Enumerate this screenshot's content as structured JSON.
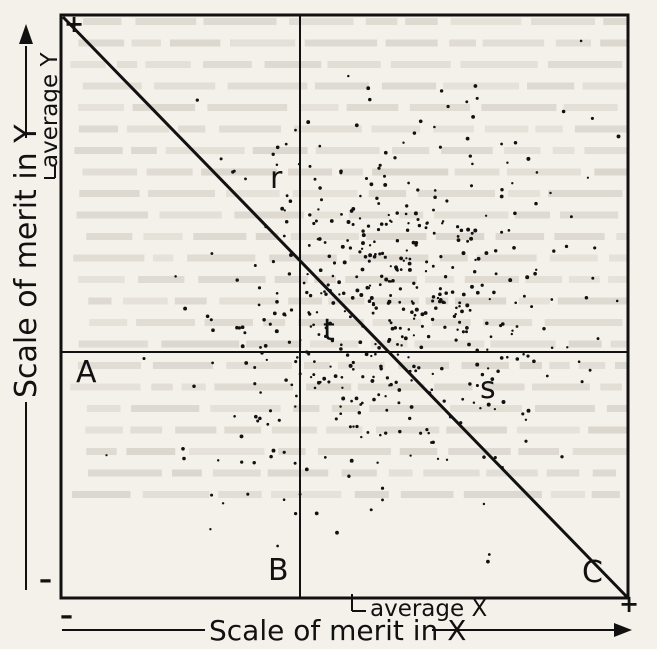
{
  "diagram": {
    "x_axis_label": "Scale of merit in X",
    "y_axis_label": "Scale of merit in Y",
    "average_x_label": "average X",
    "average_y_label": "average Y",
    "plus_top_left": "+",
    "plus_bottom_right": "+",
    "minus_left": "–",
    "minus_bottom": "–",
    "region_labels": {
      "A": "A",
      "B": "B",
      "C": "C",
      "r": "r",
      "s": "s",
      "t": "t"
    }
  },
  "colors": {
    "ink": "#111111",
    "paper": "#f4f1ea",
    "bleed_through": "#bdb8ae"
  }
}
